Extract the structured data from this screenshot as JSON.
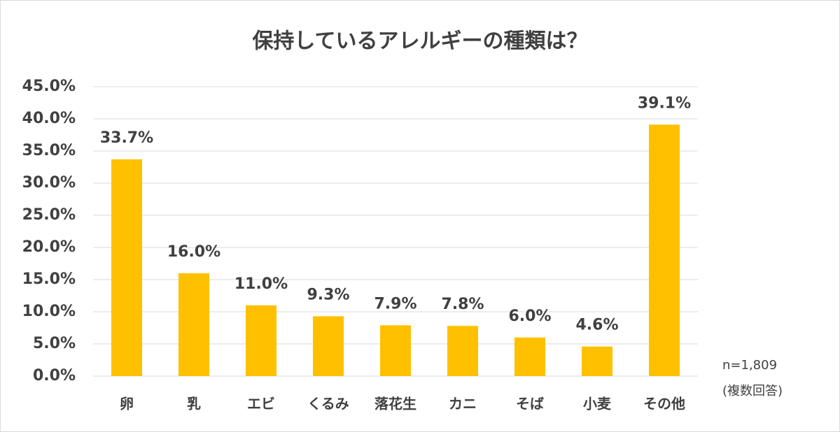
{
  "chart_data": {
    "type": "bar",
    "title": "保持しているアレルギーの種類は？",
    "categories": [
      "卵",
      "乳",
      "エビ",
      "くるみ",
      "落花生",
      "カニ",
      "そば",
      "小麦",
      "その他"
    ],
    "values": [
      33.7,
      16.0,
      11.0,
      9.3,
      7.9,
      7.8,
      6.0,
      4.6,
      39.1
    ],
    "value_labels": [
      "33.7%",
      "16.0%",
      "11.0%",
      "9.3%",
      "7.9%",
      "7.8%",
      "6.0%",
      "4.6%",
      "39.1%"
    ],
    "color": "#ffc000",
    "ylim": [
      0,
      45
    ],
    "yticks": [
      {
        "value": 0,
        "label": "0.0%"
      },
      {
        "value": 5,
        "label": "5.0%"
      },
      {
        "value": 10,
        "label": "10.0%"
      },
      {
        "value": 15,
        "label": "15.0%"
      },
      {
        "value": 20,
        "label": "20.0%"
      },
      {
        "value": 25,
        "label": "25.0%"
      },
      {
        "value": 30,
        "label": "30.0%"
      },
      {
        "value": 35,
        "label": "35.0%"
      },
      {
        "value": 40,
        "label": "40.0%"
      },
      {
        "value": 45,
        "label": "45.0%"
      }
    ],
    "grid": true,
    "annotations": [
      "n=1,809",
      "(複数回答)"
    ]
  }
}
